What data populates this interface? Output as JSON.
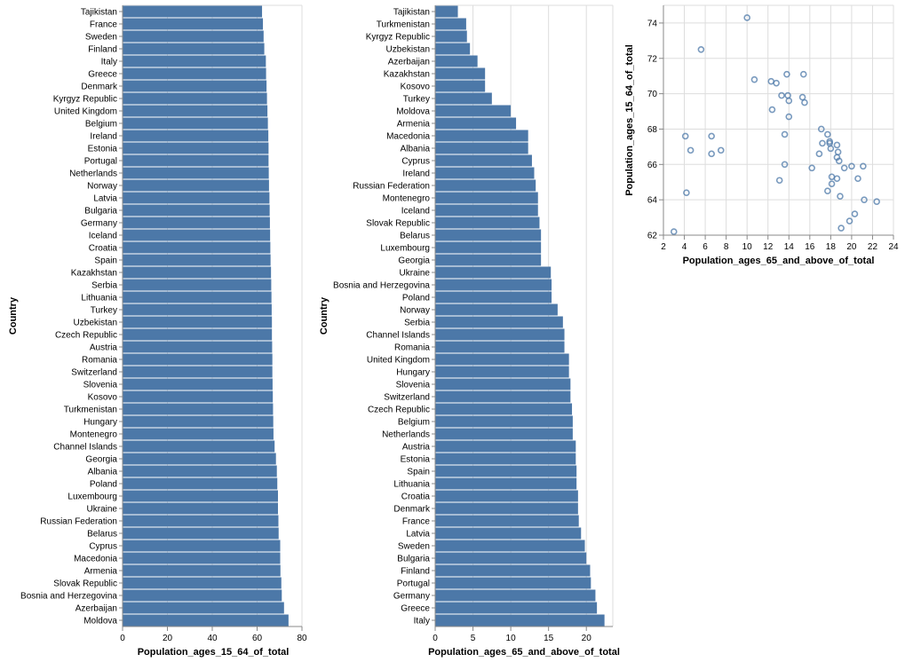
{
  "colors": {
    "bar": "#4c78a8",
    "point": "#4c78a8"
  },
  "chart_data": [
    {
      "type": "bar",
      "orientation": "horizontal",
      "xlabel": "Population_ages_15_64_of_total",
      "ylabel": "Country",
      "xlim": [
        0,
        80
      ],
      "xticks": [
        0,
        20,
        40,
        60,
        80
      ],
      "grid": true,
      "categories": [
        "Tajikistan",
        "France",
        "Sweden",
        "Finland",
        "Italy",
        "Greece",
        "Denmark",
        "Kyrgyz Republic",
        "United Kingdom",
        "Belgium",
        "Ireland",
        "Estonia",
        "Portugal",
        "Netherlands",
        "Norway",
        "Latvia",
        "Bulgaria",
        "Germany",
        "Iceland",
        "Croatia",
        "Spain",
        "Kazakhstan",
        "Serbia",
        "Lithuania",
        "Turkey",
        "Uzbekistan",
        "Czech Republic",
        "Austria",
        "Romania",
        "Switzerland",
        "Slovenia",
        "Kosovo",
        "Turkmenistan",
        "Hungary",
        "Montenegro",
        "Channel Islands",
        "Georgia",
        "Albania",
        "Poland",
        "Luxembourg",
        "Ukraine",
        "Russian Federation",
        "Belarus",
        "Cyprus",
        "Macedonia",
        "Armenia",
        "Slovak Republic",
        "Bosnia and Herzegovina",
        "Azerbaijan",
        "Moldova"
      ],
      "values": [
        62.2,
        62.6,
        62.9,
        63.2,
        63.9,
        64.0,
        64.2,
        64.4,
        64.6,
        64.8,
        65.0,
        65.1,
        65.1,
        65.2,
        65.3,
        65.5,
        65.6,
        65.7,
        65.8,
        65.9,
        66.0,
        66.2,
        66.3,
        66.4,
        66.5,
        66.6,
        66.6,
        66.7,
        66.8,
        66.8,
        66.9,
        67.0,
        67.1,
        67.2,
        67.3,
        67.8,
        68.4,
        68.8,
        69.0,
        69.3,
        69.3,
        69.5,
        69.6,
        70.3,
        70.3,
        70.4,
        70.8,
        71.0,
        72.0,
        74.0
      ]
    },
    {
      "type": "bar",
      "orientation": "horizontal",
      "xlabel": "Population_ages_65_and_above_of_total",
      "ylabel": "Country",
      "xlim": [
        0,
        23.5
      ],
      "xticks": [
        0,
        5,
        10,
        15,
        20
      ],
      "grid": true,
      "categories": [
        "Tajikistan",
        "Turkmenistan",
        "Kyrgyz Republic",
        "Uzbekistan",
        "Azerbaijan",
        "Kazakhstan",
        "Kosovo",
        "Turkey",
        "Moldova",
        "Armenia",
        "Macedonia",
        "Albania",
        "Cyprus",
        "Ireland",
        "Russian Federation",
        "Montenegro",
        "Iceland",
        "Slovak Republic",
        "Belarus",
        "Luxembourg",
        "Georgia",
        "Ukraine",
        "Bosnia and Herzegovina",
        "Poland",
        "Norway",
        "Serbia",
        "Channel Islands",
        "Romania",
        "United Kingdom",
        "Hungary",
        "Slovenia",
        "Switzerland",
        "Czech Republic",
        "Belgium",
        "Netherlands",
        "Austria",
        "Estonia",
        "Spain",
        "Lithuania",
        "Croatia",
        "Denmark",
        "France",
        "Latvia",
        "Sweden",
        "Bulgaria",
        "Finland",
        "Portugal",
        "Germany",
        "Greece",
        "Italy"
      ],
      "values": [
        3.0,
        4.1,
        4.2,
        4.6,
        5.6,
        6.6,
        6.6,
        7.5,
        10.0,
        10.7,
        12.3,
        12.3,
        12.8,
        13.1,
        13.3,
        13.6,
        13.6,
        13.8,
        14.0,
        14.0,
        14.0,
        15.3,
        15.4,
        15.4,
        16.2,
        16.9,
        17.1,
        17.1,
        17.7,
        17.7,
        17.9,
        17.9,
        18.1,
        18.2,
        18.2,
        18.6,
        18.6,
        18.7,
        18.7,
        18.9,
        18.9,
        19.0,
        19.3,
        19.8,
        20.0,
        20.5,
        20.6,
        21.2,
        21.4,
        22.4
      ]
    },
    {
      "type": "scatter",
      "xlabel": "Population_ages_65_and_above_of_total",
      "ylabel": "Population_ages_15_64_of_total",
      "xlim": [
        2,
        24
      ],
      "ylim": [
        62,
        75
      ],
      "xticks": [
        2,
        4,
        6,
        8,
        10,
        12,
        14,
        16,
        18,
        20,
        22,
        24
      ],
      "yticks": [
        62,
        64,
        66,
        68,
        70,
        72,
        74
      ],
      "grid": true,
      "points": [
        {
          "x": 3.0,
          "y": 62.2
        },
        {
          "x": 4.1,
          "y": 67.6
        },
        {
          "x": 4.2,
          "y": 64.4
        },
        {
          "x": 4.6,
          "y": 66.8
        },
        {
          "x": 5.6,
          "y": 72.5
        },
        {
          "x": 6.6,
          "y": 66.6
        },
        {
          "x": 6.6,
          "y": 67.6
        },
        {
          "x": 7.5,
          "y": 66.8
        },
        {
          "x": 10.0,
          "y": 74.3
        },
        {
          "x": 10.7,
          "y": 70.8
        },
        {
          "x": 12.3,
          "y": 70.7
        },
        {
          "x": 12.4,
          "y": 69.1
        },
        {
          "x": 12.8,
          "y": 70.6
        },
        {
          "x": 13.1,
          "y": 65.1
        },
        {
          "x": 13.3,
          "y": 69.9
        },
        {
          "x": 13.6,
          "y": 67.7
        },
        {
          "x": 13.6,
          "y": 66.0
        },
        {
          "x": 13.8,
          "y": 71.1
        },
        {
          "x": 13.9,
          "y": 69.9
        },
        {
          "x": 14.0,
          "y": 69.6
        },
        {
          "x": 14.0,
          "y": 68.7
        },
        {
          "x": 15.3,
          "y": 69.8
        },
        {
          "x": 15.4,
          "y": 71.1
        },
        {
          "x": 15.5,
          "y": 69.5
        },
        {
          "x": 16.2,
          "y": 65.8
        },
        {
          "x": 16.9,
          "y": 66.6
        },
        {
          "x": 17.1,
          "y": 68.0
        },
        {
          "x": 17.2,
          "y": 67.2
        },
        {
          "x": 17.7,
          "y": 67.7
        },
        {
          "x": 17.7,
          "y": 64.5
        },
        {
          "x": 17.9,
          "y": 67.3
        },
        {
          "x": 17.9,
          "y": 67.2
        },
        {
          "x": 18.0,
          "y": 66.9
        },
        {
          "x": 18.1,
          "y": 65.3
        },
        {
          "x": 18.1,
          "y": 64.9
        },
        {
          "x": 18.6,
          "y": 67.1
        },
        {
          "x": 18.6,
          "y": 66.4
        },
        {
          "x": 18.6,
          "y": 65.2
        },
        {
          "x": 18.7,
          "y": 66.7
        },
        {
          "x": 18.8,
          "y": 66.2
        },
        {
          "x": 18.9,
          "y": 64.2
        },
        {
          "x": 19.0,
          "y": 62.4
        },
        {
          "x": 19.3,
          "y": 65.8
        },
        {
          "x": 19.8,
          "y": 62.8
        },
        {
          "x": 20.0,
          "y": 65.9
        },
        {
          "x": 20.3,
          "y": 63.2
        },
        {
          "x": 20.6,
          "y": 65.2
        },
        {
          "x": 21.1,
          "y": 65.9
        },
        {
          "x": 21.2,
          "y": 64.0
        },
        {
          "x": 22.4,
          "y": 63.9
        }
      ]
    }
  ]
}
